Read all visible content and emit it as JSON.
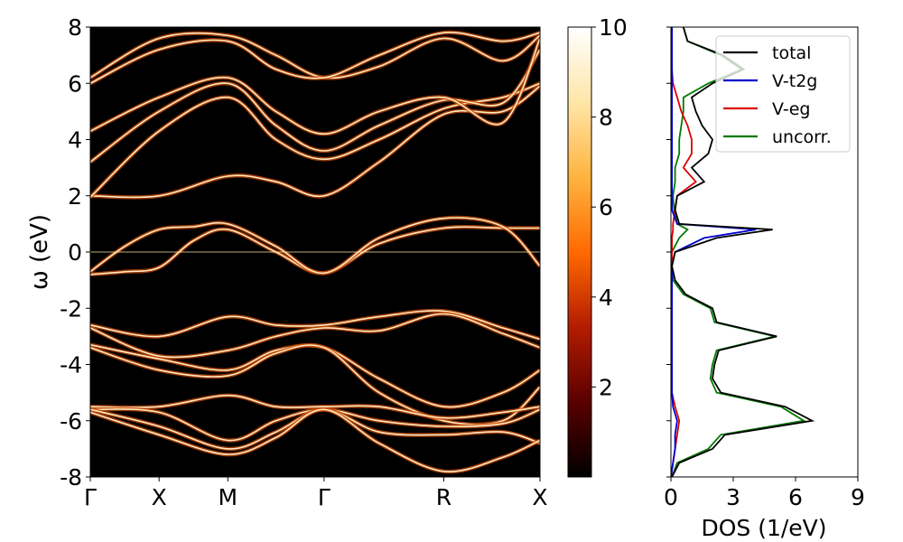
{
  "chart_data": [
    {
      "type": "heatmap",
      "ylabel": "ω (eV)",
      "ylim": [
        -8,
        8
      ],
      "yticks": [
        8,
        6,
        4,
        2,
        0,
        -2,
        -4,
        -6,
        -8
      ],
      "ytick_labels": [
        "8",
        "6",
        "4",
        "2",
        "0",
        "-2",
        "-4",
        "-6",
        "-8"
      ],
      "kpath_labels": [
        "Γ",
        "X",
        "M",
        "Γ",
        "R",
        "X"
      ],
      "kpath_positions": [
        0,
        0.5,
        1,
        1.7,
        2.57,
        3.27
      ],
      "fermi_level": 0,
      "bands": [
        {
          "k": [
            0,
            0.25,
            0.5,
            0.75,
            1,
            1.35,
            1.7,
            2.1,
            2.57,
            3,
            3.27
          ],
          "e": [
            -0.8,
            -0.7,
            -0.55,
            0.4,
            0.8,
            0.0,
            -0.75,
            0.3,
            0.85,
            0.85,
            0.85
          ]
        },
        {
          "k": [
            0,
            0.25,
            0.5,
            0.75,
            1,
            1.35,
            1.7,
            2.1,
            2.57,
            3,
            3.27
          ],
          "e": [
            -0.7,
            0.2,
            0.8,
            0.9,
            1.0,
            0.2,
            -0.75,
            0.5,
            1.2,
            0.9,
            -0.5
          ]
        },
        {
          "k": [
            0,
            0.5,
            1,
            1.35,
            1.7,
            2.1,
            2.57,
            3,
            3.27
          ],
          "e": [
            2.0,
            2.0,
            2.7,
            2.5,
            2.0,
            3.2,
            4.9,
            5.0,
            5.9
          ]
        },
        {
          "k": [
            0,
            0.5,
            1,
            1.35,
            1.7,
            2.1,
            2.57,
            3,
            3.27
          ],
          "e": [
            1.95,
            4.3,
            5.5,
            4.0,
            3.3,
            4.0,
            5.1,
            5.5,
            6.0
          ]
        },
        {
          "k": [
            0,
            0.5,
            1,
            1.35,
            1.7,
            2.1,
            2.57,
            3,
            3.27
          ],
          "e": [
            3.2,
            5.0,
            6.0,
            4.5,
            3.6,
            4.5,
            5.4,
            5.3,
            7.2
          ]
        },
        {
          "k": [
            0,
            0.5,
            1,
            1.35,
            1.7,
            2.1,
            2.57,
            3,
            3.27
          ],
          "e": [
            4.3,
            5.5,
            6.2,
            5.0,
            4.2,
            5.0,
            5.5,
            4.6,
            7.6
          ]
        },
        {
          "k": [
            0,
            0.5,
            1,
            1.35,
            1.7,
            2.1,
            2.57,
            3,
            3.27
          ],
          "e": [
            6.2,
            7.6,
            7.7,
            7.0,
            6.2,
            6.6,
            7.6,
            6.8,
            7.7
          ]
        },
        {
          "k": [
            0,
            0.5,
            1,
            1.35,
            1.7,
            2.1,
            2.57,
            3,
            3.27
          ],
          "e": [
            6.0,
            7.2,
            7.5,
            6.5,
            6.2,
            7.0,
            7.8,
            7.5,
            7.8
          ]
        },
        {
          "k": [
            0,
            0.5,
            1,
            1.35,
            1.7,
            2.1,
            2.57,
            3,
            3.27
          ],
          "e": [
            -2.6,
            -3.0,
            -2.3,
            -2.6,
            -2.6,
            -2.3,
            -2.1,
            -2.7,
            -3.1
          ]
        },
        {
          "k": [
            0,
            0.5,
            1,
            1.35,
            1.7,
            2.1,
            2.57,
            3,
            3.27
          ],
          "e": [
            -2.7,
            -3.7,
            -3.5,
            -3.0,
            -2.7,
            -2.8,
            -2.2,
            -2.9,
            -3.4
          ]
        },
        {
          "k": [
            0,
            0.5,
            1,
            1.35,
            1.7,
            2.1,
            2.57,
            3,
            3.27
          ],
          "e": [
            -3.3,
            -3.8,
            -4.2,
            -3.5,
            -3.4,
            -4.5,
            -5.5,
            -5.0,
            -4.2
          ]
        },
        {
          "k": [
            0,
            0.5,
            1,
            1.35,
            1.7,
            2.1,
            2.57,
            3,
            3.27
          ],
          "e": [
            -3.4,
            -4.2,
            -4.4,
            -3.6,
            -3.4,
            -5.0,
            -6.0,
            -6.0,
            -4.8
          ]
        },
        {
          "k": [
            0,
            0.5,
            1,
            1.35,
            1.7,
            2.1,
            2.57,
            3,
            3.27
          ],
          "e": [
            -5.5,
            -5.5,
            -5.1,
            -5.5,
            -5.5,
            -5.5,
            -5.9,
            -5.7,
            -5.5
          ]
        },
        {
          "k": [
            0,
            0.5,
            1,
            1.35,
            1.7,
            2.1,
            2.57,
            3,
            3.27
          ],
          "e": [
            -5.6,
            -5.7,
            -6.7,
            -6.0,
            -5.6,
            -6.0,
            -6.2,
            -6.1,
            -5.6
          ]
        },
        {
          "k": [
            0,
            0.5,
            1,
            1.35,
            1.7,
            2.1,
            2.57,
            3,
            3.27
          ],
          "e": [
            -5.6,
            -6.2,
            -7.0,
            -6.4,
            -5.6,
            -6.4,
            -6.5,
            -6.4,
            -6.8
          ]
        },
        {
          "k": [
            0,
            0.5,
            1,
            1.35,
            1.7,
            2.1,
            2.57,
            3,
            3.27
          ],
          "e": [
            -5.7,
            -6.5,
            -7.2,
            -6.6,
            -5.6,
            -6.8,
            -7.8,
            -7.3,
            -6.7
          ]
        }
      ],
      "colorbar": {
        "range": [
          0,
          10
        ],
        "ticks": [
          10,
          8,
          6,
          4,
          2
        ],
        "tick_labels": [
          "10",
          "8",
          "6",
          "4",
          "2"
        ],
        "colormap": [
          "#000000",
          "#5a0000",
          "#b41c00",
          "#ff6a00",
          "#ffb440",
          "#ffe6a8",
          "#ffffff"
        ]
      }
    },
    {
      "type": "line",
      "xlabel": "DOS (1/eV)",
      "xlim": [
        0,
        9
      ],
      "xticks": [
        0,
        3,
        6,
        9
      ],
      "xtick_labels": [
        "0",
        "3",
        "6",
        "9"
      ],
      "ylim": [
        -8,
        8
      ],
      "legend_position": "top-right",
      "energies": [
        -8,
        -7.5,
        -7,
        -6.5,
        -6,
        -5.5,
        -5,
        -4.5,
        -4,
        -3.5,
        -3,
        -2.5,
        -2,
        -1.5,
        -1,
        -0.5,
        0,
        0.5,
        0.8,
        1,
        1.5,
        2,
        2.5,
        3,
        3.5,
        4,
        4.5,
        5,
        5.5,
        6,
        6.5,
        7,
        7.5,
        8
      ],
      "series": [
        {
          "name": "total",
          "color": "#000000",
          "values": [
            0.05,
            0.4,
            2.0,
            2.6,
            6.8,
            5.5,
            2.4,
            2.0,
            2.1,
            2.3,
            5.1,
            2.2,
            2.0,
            0.7,
            0.2,
            0.05,
            0.2,
            2.2,
            4.9,
            0.4,
            0.2,
            0.3,
            1.6,
            1.0,
            1.8,
            2.0,
            1.5,
            1.2,
            1.0,
            2.0,
            3.5,
            2.5,
            0.8,
            0.6
          ]
        },
        {
          "name": "V-t2g",
          "color": "#0000cc",
          "values": [
            0.0,
            0.1,
            0.2,
            0.2,
            0.3,
            0.1,
            0.05,
            0.05,
            0.05,
            0.05,
            0.05,
            0.05,
            0.05,
            0.05,
            0.05,
            0.05,
            0.2,
            1.6,
            4.1,
            0.3,
            0.05,
            0.05,
            0.05,
            0.05,
            0.05,
            0.05,
            0.05,
            0.05,
            0.05,
            0.05,
            0.05,
            0.05,
            0.05,
            0.05
          ]
        },
        {
          "name": "V-eg",
          "color": "#dd0000",
          "values": [
            0.0,
            0.1,
            0.2,
            0.3,
            0.4,
            0.2,
            0.05,
            0.05,
            0.05,
            0.05,
            0.05,
            0.05,
            0.05,
            0.05,
            0.05,
            0.05,
            0.05,
            0.05,
            0.1,
            0.1,
            0.2,
            0.3,
            1.2,
            0.6,
            1.0,
            1.0,
            0.8,
            0.5,
            0.3,
            0.1,
            0.05,
            0.05,
            0.05,
            0.05
          ]
        },
        {
          "name": "uncorr.",
          "color": "#007a00",
          "values": [
            0.05,
            0.3,
            1.8,
            2.4,
            6.4,
            5.3,
            2.2,
            1.9,
            2.0,
            2.2,
            5.0,
            2.1,
            1.9,
            0.6,
            0.1,
            0.05,
            0.05,
            0.4,
            0.8,
            0.3,
            0.15,
            0.1,
            0.2,
            0.2,
            0.4,
            0.4,
            0.5,
            0.6,
            0.6,
            1.8,
            3.4,
            2.4,
            0.8,
            0.6
          ]
        }
      ]
    }
  ]
}
